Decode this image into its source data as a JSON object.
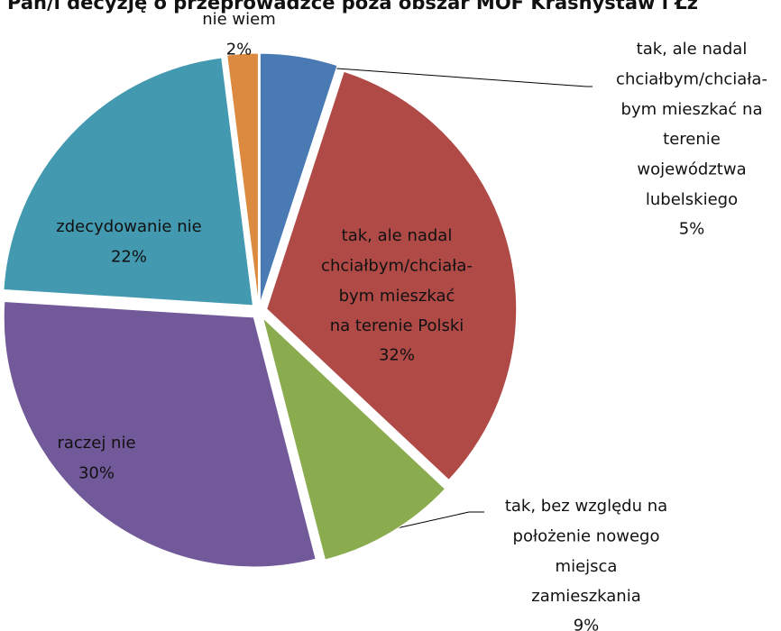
{
  "chart_data": {
    "type": "pie",
    "title": "Pan/i decyzję o przeprowadzce poza obszar MOF Krasnystaw i Łz",
    "categories": [
      "tak, ale nadal\nchciałbym/chciała-\nbym mieszkać na\nterenie\nwojewództwa\nlubelskiego",
      "tak, ale nadal\nchciałbym/chciała-\nbym mieszkać\nna terenie Polski",
      "tak, bez względu na\npołożenie nowego\nmiejsca\nzamieszkania",
      "raczej nie",
      "zdecydowanie nie",
      "nie wiem"
    ],
    "values": [
      5,
      32,
      9,
      30,
      22,
      2
    ],
    "value_labels": [
      "5%",
      "32%",
      "9%",
      "30%",
      "22%",
      "2%"
    ],
    "colors": [
      "#4a7ab4",
      "#b04a47",
      "#8aab4e",
      "#72599a",
      "#4299b0",
      "#dc8a40"
    ]
  }
}
